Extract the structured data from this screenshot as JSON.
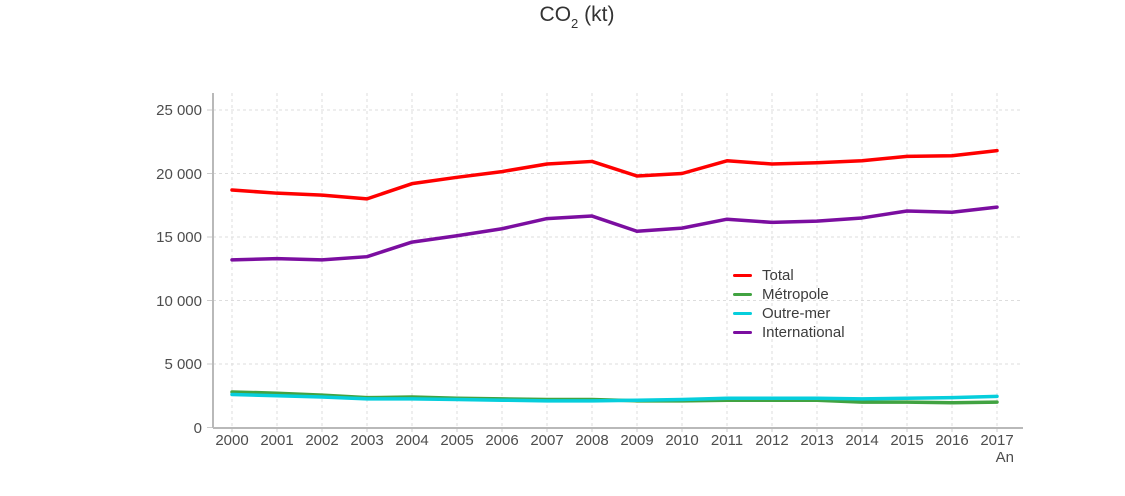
{
  "title": {
    "prefix": "CO",
    "sub": "2",
    "suffix": " (kt)"
  },
  "chart_data": {
    "type": "line",
    "title": "CO2 (kt)",
    "xlabel": "An",
    "ylabel": "",
    "x": [
      2000,
      2001,
      2002,
      2003,
      2004,
      2005,
      2006,
      2007,
      2008,
      2009,
      2010,
      2011,
      2012,
      2013,
      2014,
      2015,
      2016,
      2017
    ],
    "ylim": [
      0,
      26300
    ],
    "yticks": [
      {
        "value": 0,
        "label": "0"
      },
      {
        "value": 5000,
        "label": "5 000"
      },
      {
        "value": 10000,
        "label": "10 000"
      },
      {
        "value": 15000,
        "label": "15 000"
      },
      {
        "value": 20000,
        "label": "20 000"
      },
      {
        "value": 25000,
        "label": "25 000"
      }
    ],
    "grid": "dashed horizontal and vertical gridlines",
    "legend_position": "middle-right",
    "series": [
      {
        "name": "Total",
        "color": "#ff0000",
        "values": [
          18700,
          18450,
          18300,
          18000,
          19200,
          19700,
          20150,
          20750,
          20950,
          19800,
          20000,
          21000,
          20750,
          20850,
          21000,
          21350,
          21400,
          21800
        ]
      },
      {
        "name": "Métropole",
        "color": "#41a341",
        "values": [
          2800,
          2700,
          2550,
          2350,
          2400,
          2300,
          2250,
          2200,
          2200,
          2100,
          2100,
          2150,
          2150,
          2150,
          2000,
          2000,
          1950,
          2000
        ]
      },
      {
        "name": "Outre-mer",
        "color": "#06cedc",
        "values": [
          2600,
          2500,
          2400,
          2250,
          2250,
          2200,
          2150,
          2100,
          2100,
          2150,
          2200,
          2300,
          2300,
          2300,
          2250,
          2300,
          2350,
          2450
        ]
      },
      {
        "name": "International",
        "color": "#7b0ea0",
        "values": [
          13200,
          13300,
          13200,
          13450,
          14600,
          15100,
          15650,
          16450,
          16650,
          15450,
          15700,
          16400,
          16150,
          16250,
          16500,
          17050,
          16950,
          17350
        ]
      }
    ],
    "colors": {
      "axis": "#b9b9b9",
      "grid": "#dddddd",
      "tick": "#cccccc",
      "label": "#4d4d4d",
      "title": "#333333"
    }
  }
}
